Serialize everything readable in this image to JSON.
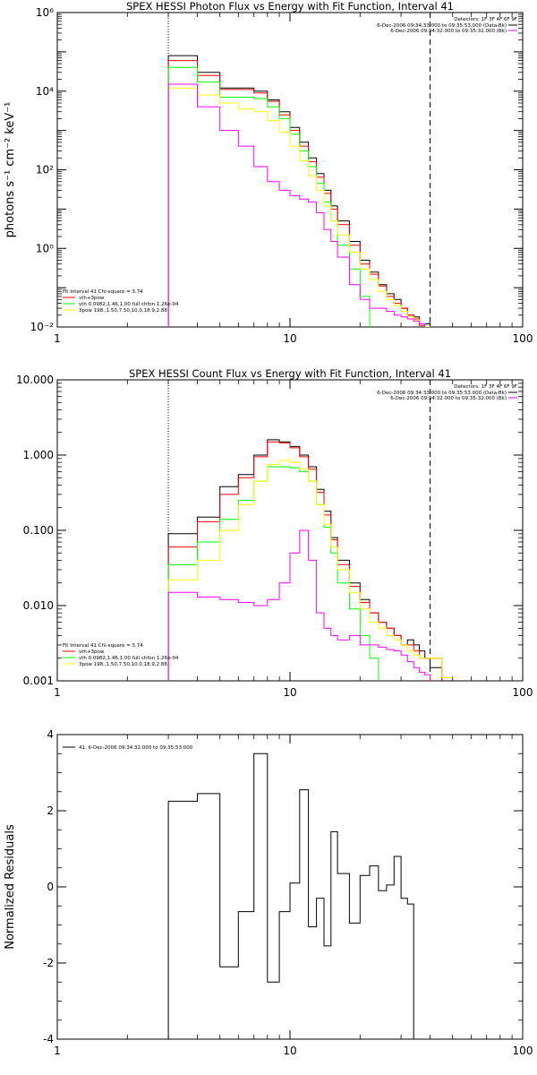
{
  "chart_data": [
    {
      "type": "line",
      "step": true,
      "title": "SPEX HESSI Photon Flux vs Energy with Fit Function, Interval 41",
      "ylabel": "photons s⁻¹ cm⁻² keV⁻¹",
      "xscale": "log",
      "yscale": "log",
      "xlim": [
        1,
        100
      ],
      "ylim": [
        0.01,
        1000000
      ],
      "xticks": [
        1,
        10,
        100
      ],
      "xtick_labels": [
        "1",
        "10",
        "100"
      ],
      "yticks": [
        0.01,
        1,
        100,
        10000,
        1000000
      ],
      "ytick_labels": [
        "10⁻²",
        "10⁰",
        "10²",
        "10⁴",
        "10⁶"
      ],
      "vlines": [
        {
          "x": 3,
          "style": "dotted"
        },
        {
          "x": 40,
          "style": "dashed"
        }
      ],
      "legend_right": {
        "header": "Detectors: 1F 3F 4F 6F 9F",
        "entries": [
          {
            "label": "6-Dec-2006 09:34:33.000 to 09:35:53.000 (Data-Bk)",
            "color": "#000000"
          },
          {
            "label": "6-Dec-2006 09:34:32.000 to 09:35:32.000 (Bk)",
            "color": "#ff00ff"
          }
        ]
      },
      "legend_left": {
        "header": "Fit Interval 41   Chi-square = 3.74",
        "entries": [
          {
            "label": "vth+3pow",
            "color": "#ff0000"
          },
          {
            "label": "vth 0.0982,1.46,1.00  full chfon 1.26e-04",
            "color": "#00ff00"
          },
          {
            "label": "3pow 198.,1.50,7.50,10.0,18.9,2.88",
            "color": "#ffff00"
          }
        ]
      },
      "bin_edges": [
        3,
        4,
        5,
        6,
        7,
        8,
        9,
        10,
        11,
        12,
        13,
        14,
        15,
        16,
        18,
        20,
        22,
        24,
        26,
        28,
        30,
        32,
        34,
        36,
        38,
        40,
        45,
        50
      ],
      "series": [
        {
          "color": "#000000",
          "values": [
            80000,
            30000,
            12000,
            12000,
            10000,
            6000,
            3000,
            1200,
            500,
            200,
            80,
            30,
            12,
            5,
            1.5,
            0.5,
            0.25,
            0.12,
            0.07,
            0.05,
            0.03,
            0.02,
            0.018,
            0.012,
            0.012,
            0.01,
            null
          ]
        },
        {
          "color": "#ff0000",
          "values": [
            60000,
            25000,
            11000,
            11000,
            9000,
            5500,
            2500,
            1000,
            400,
            160,
            65,
            25,
            10,
            4,
            1.2,
            0.4,
            0.22,
            0.11,
            0.06,
            0.04,
            0.03,
            0.02,
            0.016,
            0.011,
            0.01,
            0.008,
            null
          ]
        },
        {
          "color": "#00ff00",
          "values": [
            40000,
            17000,
            7000,
            7000,
            6500,
            4000,
            2000,
            800,
            300,
            120,
            45,
            15,
            5,
            1.2,
            0.3,
            0.06,
            0.008,
            null,
            null,
            null,
            null,
            null,
            null,
            null,
            null,
            null,
            null
          ]
        },
        {
          "color": "#ffff00",
          "values": [
            12000,
            8000,
            5000,
            3500,
            3000,
            1800,
            900,
            400,
            170,
            70,
            30,
            12,
            5,
            2.2,
            0.8,
            0.3,
            0.16,
            0.08,
            0.05,
            0.035,
            0.025,
            0.018,
            0.015,
            0.012,
            0.01,
            0.009,
            0.009
          ]
        },
        {
          "color": "#ff00ff",
          "values": [
            15000,
            4000,
            1000,
            400,
            120,
            50,
            30,
            22,
            18,
            15,
            8,
            3,
            1.5,
            0.6,
            0.12,
            0.05,
            0.03,
            0.03,
            0.025,
            0.02,
            0.018,
            0.016,
            0.014,
            0.012,
            0.008,
            null,
            null
          ]
        }
      ]
    },
    {
      "type": "line",
      "step": true,
      "title": "SPEX HESSI Count Flux vs Energy with Fit Function, Interval 41",
      "ylabel": "",
      "xscale": "log",
      "yscale": "log",
      "xlim": [
        1,
        100
      ],
      "ylim": [
        0.001,
        10
      ],
      "xticks": [
        1,
        10,
        100
      ],
      "xtick_labels": [
        "1",
        "10",
        "100"
      ],
      "yticks": [
        0.001,
        0.01,
        0.1,
        1,
        10
      ],
      "ytick_labels": [
        "0.001",
        "0.010",
        "0.100",
        "1.000",
        "10.000"
      ],
      "vlines": [
        {
          "x": 3,
          "style": "dotted"
        },
        {
          "x": 40,
          "style": "dashed"
        }
      ],
      "legend_right": {
        "header": "Detectors: 1F 3F 4F 6F 9F",
        "entries": [
          {
            "label": "6-Dec-2006 09:34:33.000 to 09:35:53.000 (Data-Bk)",
            "color": "#000000"
          },
          {
            "label": "6-Dec-2006 09:34:32.000 to 09:35:32.000 (Bk)",
            "color": "#ff00ff"
          }
        ]
      },
      "legend_left": {
        "header": "Fit Interval 41   Chi-square = 3.74",
        "entries": [
          {
            "label": "vth+3pow",
            "color": "#ff0000"
          },
          {
            "label": "vth 0.0982,1.46,1.00  full chfon 1.26e-04",
            "color": "#00ff00"
          },
          {
            "label": "3pow 198.,1.50,7.50,10.0,18.9,2.88",
            "color": "#ffff00"
          }
        ]
      },
      "bin_edges": [
        3,
        4,
        5,
        6,
        7,
        8,
        9,
        10,
        11,
        12,
        13,
        14,
        15,
        16,
        18,
        20,
        22,
        24,
        26,
        28,
        30,
        32,
        34,
        36,
        38,
        40,
        45,
        50
      ],
      "series": [
        {
          "color": "#000000",
          "values": [
            0.09,
            0.15,
            0.38,
            0.55,
            1.0,
            1.6,
            1.5,
            1.3,
            1.0,
            0.7,
            0.35,
            0.18,
            0.08,
            0.04,
            0.02,
            0.012,
            0.008,
            0.006,
            0.005,
            0.004,
            0.003,
            0.0035,
            0.003,
            0.0025,
            0.002,
            0.0015,
            null
          ]
        },
        {
          "color": "#ff0000",
          "values": [
            0.06,
            0.13,
            0.3,
            0.5,
            0.95,
            1.5,
            1.45,
            1.25,
            0.95,
            0.65,
            0.32,
            0.16,
            0.075,
            0.035,
            0.018,
            0.011,
            0.008,
            0.006,
            0.005,
            0.004,
            0.003,
            0.003,
            0.0025,
            0.002,
            0.002,
            0.002,
            null
          ]
        },
        {
          "color": "#00ff00",
          "values": [
            0.035,
            0.07,
            0.14,
            0.25,
            0.45,
            0.7,
            0.7,
            0.68,
            0.6,
            0.45,
            0.22,
            0.11,
            0.05,
            0.02,
            0.009,
            0.004,
            0.002,
            null,
            null,
            null,
            null,
            null,
            null,
            null,
            null,
            null,
            null
          ]
        },
        {
          "color": "#ffff00",
          "values": [
            0.022,
            0.04,
            0.1,
            0.22,
            0.45,
            0.75,
            0.85,
            0.8,
            0.65,
            0.45,
            0.22,
            0.12,
            0.06,
            0.03,
            0.015,
            0.009,
            0.006,
            0.005,
            0.004,
            0.0035,
            0.003,
            0.0025,
            0.0022,
            0.002,
            0.002,
            0.002,
            0.0011
          ]
        },
        {
          "color": "#ff00ff",
          "values": [
            0.015,
            0.013,
            0.012,
            0.011,
            0.01,
            0.012,
            0.02,
            0.05,
            0.1,
            0.04,
            0.008,
            0.005,
            0.004,
            0.0035,
            0.004,
            0.003,
            0.003,
            0.0028,
            0.0026,
            0.0025,
            0.0022,
            0.0018,
            0.0015,
            0.0013,
            0.0012,
            null,
            null
          ]
        }
      ]
    },
    {
      "type": "line",
      "step": true,
      "title": "",
      "ylabel": "Normalized Residuals",
      "xscale": "log",
      "yscale": "linear",
      "xlim": [
        1,
        100
      ],
      "ylim": [
        -4,
        4
      ],
      "xticks": [
        1,
        10,
        100
      ],
      "xtick_labels": [
        "1",
        "10",
        "100"
      ],
      "yticks": [
        -4,
        -2,
        0,
        2,
        4
      ],
      "ytick_labels": [
        "-4",
        "-2",
        "0",
        "2",
        "4"
      ],
      "legend_left": {
        "header": "",
        "entries": [
          {
            "label": "41.  6-Dec-2006 09:34:32.000 to 09:35:53.000",
            "color": "#000000"
          }
        ]
      },
      "bin_edges": [
        3,
        4,
        5,
        6,
        7,
        8,
        9,
        10,
        11,
        12,
        13,
        14,
        15,
        16,
        18,
        20,
        22,
        24,
        26,
        28,
        30,
        32,
        34,
        36,
        38,
        40
      ],
      "series": [
        {
          "color": "#000000",
          "values": [
            2.25,
            2.45,
            -2.1,
            -0.65,
            3.5,
            -2.5,
            -0.65,
            0.1,
            2.55,
            -1.05,
            -0.3,
            -1.55,
            1.45,
            0.35,
            -0.95,
            0.3,
            0.55,
            -0.1,
            0.05,
            0.8,
            -0.3,
            -0.45,
            null,
            null,
            null
          ]
        }
      ]
    }
  ]
}
